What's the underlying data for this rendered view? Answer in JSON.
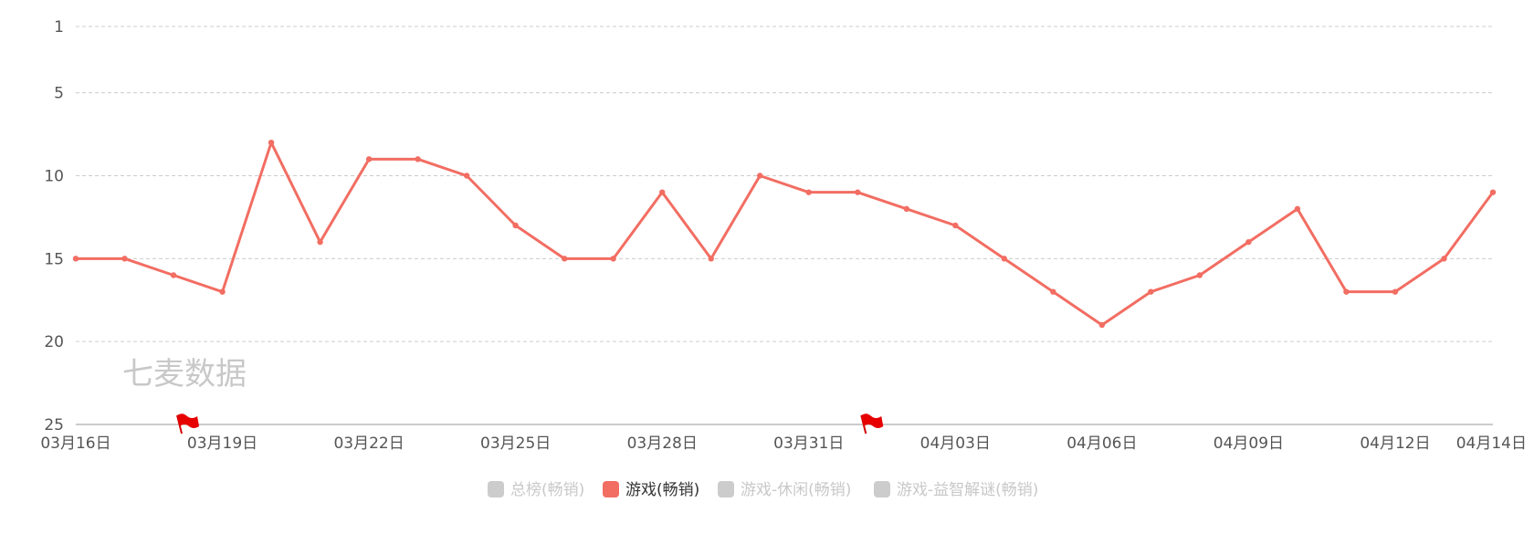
{
  "chart_data": {
    "type": "line",
    "title": "",
    "xlabel": "",
    "ylabel": "",
    "y_inverted": true,
    "ylim": [
      1,
      25
    ],
    "y_ticks": [
      1,
      5,
      10,
      15,
      20,
      25
    ],
    "grid": "horizontal-dashed",
    "legend_position": "bottom-center",
    "watermark": "七麦数据",
    "x": [
      "03月16日",
      "03月17日",
      "03月18日",
      "03月19日",
      "03月20日",
      "03月21日",
      "03月22日",
      "03月23日",
      "03月24日",
      "03月25日",
      "03月26日",
      "03月27日",
      "03月28日",
      "03月29日",
      "03月30日",
      "03月31日",
      "04月01日",
      "04月02日",
      "04月03日",
      "04月04日",
      "04月05日",
      "04月06日",
      "04月07日",
      "04月08日",
      "04月09日",
      "04月10日",
      "04月11日",
      "04月12日",
      "04月13日",
      "04月14日"
    ],
    "x_tick_labels": [
      "03月16日",
      "03月19日",
      "03月22日",
      "03月25日",
      "03月28日",
      "03月31日",
      "04月03日",
      "04月06日",
      "04月09日",
      "04月12日",
      "04月14日"
    ],
    "flag_dates": [
      "03月18日",
      "04月01日"
    ],
    "series": [
      {
        "name": "游戏(畅销)",
        "color": "#f26d62",
        "values": [
          15,
          15,
          16,
          17,
          8,
          14,
          9,
          9,
          10,
          13,
          15,
          15,
          11,
          15,
          10,
          11,
          11,
          12,
          13,
          15,
          17,
          19,
          17,
          16,
          14,
          12,
          17,
          17,
          15,
          11
        ]
      }
    ],
    "legend": [
      {
        "name": "总榜(畅销)",
        "color": "#cccccc",
        "active": false
      },
      {
        "name": "游戏(畅销)",
        "color": "#f26d62",
        "active": true
      },
      {
        "name": "游戏-休闲(畅销)",
        "color": "#cccccc",
        "active": false
      },
      {
        "name": "游戏-益智解谜(畅销)",
        "color": "#cccccc",
        "active": false
      }
    ]
  }
}
